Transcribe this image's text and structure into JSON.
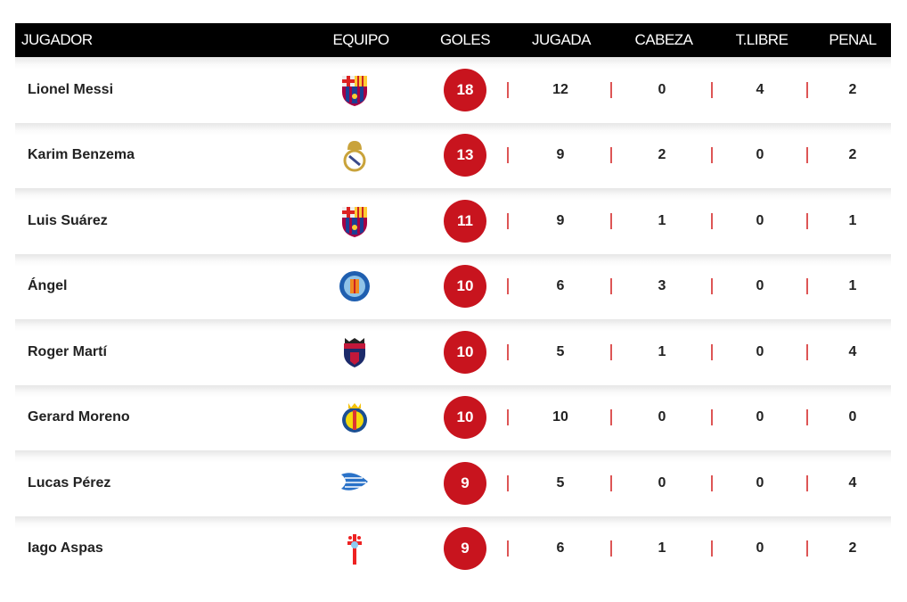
{
  "headers": {
    "player": "JUGADOR",
    "team": "EQUIPO",
    "goals": "GOLES",
    "play": "JUGADA",
    "header": "CABEZA",
    "free_kick": "T.LIBRE",
    "penalty": "PENAL"
  },
  "colors": {
    "goal_badge": "#c8141e",
    "header_bg": "#000000",
    "separator": "#dd5555"
  },
  "rows": [
    {
      "name": "Lionel Messi",
      "team_icon": "barcelona-crest",
      "goals": "18",
      "play": "12",
      "header": "0",
      "free_kick": "4",
      "penalty": "2"
    },
    {
      "name": "Karim Benzema",
      "team_icon": "real-madrid-crest",
      "goals": "13",
      "play": "9",
      "header": "2",
      "free_kick": "0",
      "penalty": "2"
    },
    {
      "name": "Luis Suárez",
      "team_icon": "barcelona-crest",
      "goals": "11",
      "play": "9",
      "header": "1",
      "free_kick": "0",
      "penalty": "1"
    },
    {
      "name": "Ángel",
      "team_icon": "getafe-crest",
      "goals": "10",
      "play": "6",
      "header": "3",
      "free_kick": "0",
      "penalty": "1"
    },
    {
      "name": "Roger Martí",
      "team_icon": "levante-crest",
      "goals": "10",
      "play": "5",
      "header": "1",
      "free_kick": "0",
      "penalty": "4"
    },
    {
      "name": "Gerard Moreno",
      "team_icon": "villarreal-crest",
      "goals": "10",
      "play": "10",
      "header": "0",
      "free_kick": "0",
      "penalty": "0"
    },
    {
      "name": "Lucas Pérez",
      "team_icon": "alaves-crest",
      "goals": "9",
      "play": "5",
      "header": "0",
      "free_kick": "0",
      "penalty": "4"
    },
    {
      "name": "Iago Aspas",
      "team_icon": "celta-crest",
      "goals": "9",
      "play": "6",
      "header": "1",
      "free_kick": "0",
      "penalty": "2"
    }
  ]
}
